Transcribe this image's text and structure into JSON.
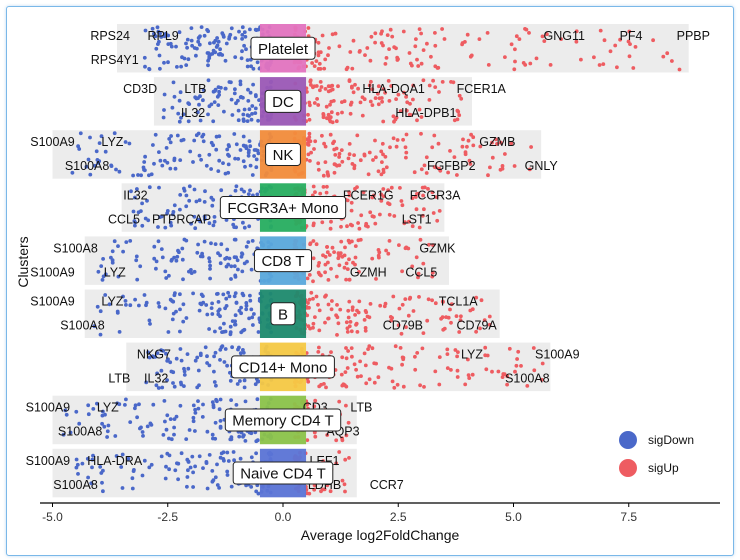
{
  "chart_data": {
    "type": "scatter",
    "subtype": "jitter-volcano-by-cluster",
    "xlabel": "Average log2FoldChange",
    "ylabel": "Clusters",
    "xlim": [
      -5.4,
      9.4
    ],
    "x_ticks": [
      "-5.0",
      "-2.5",
      "0.0",
      "2.5",
      "5.0",
      "7.5"
    ],
    "x_tick_values": [
      -5,
      -2.5,
      0,
      2.5,
      5,
      7.5
    ],
    "legend": {
      "placement": "bottom-right",
      "items": [
        {
          "label": "sigDown",
          "color": "#4a68c9"
        },
        {
          "label": "sigUp",
          "color": "#ee5c61"
        }
      ]
    },
    "clusters": [
      {
        "name": "Platelet",
        "color": "#e374c0",
        "bg_range": [
          -3.6,
          8.8
        ],
        "points_range": [
          -3.0,
          8.6
        ],
        "n_down": 150,
        "n_up": 160,
        "genes": [
          {
            "label": "RPS24",
            "x": -3.75,
            "row": "top",
            "dir": "down"
          },
          {
            "label": "RPL9",
            "x": -2.6,
            "row": "top",
            "dir": "down"
          },
          {
            "label": "RPS4Y1",
            "x": -3.65,
            "row": "bottom",
            "dir": "down"
          },
          {
            "label": "GNG11",
            "x": 6.1,
            "row": "top",
            "dir": "up"
          },
          {
            "label": "PF4",
            "x": 7.55,
            "row": "top",
            "dir": "up"
          },
          {
            "label": "PPBP",
            "x": 8.9,
            "row": "top",
            "dir": "up"
          }
        ]
      },
      {
        "name": "DC",
        "color": "#9b59b6",
        "bg_range": [
          -2.8,
          4.1
        ],
        "points_range": [
          -2.6,
          3.9
        ],
        "n_down": 110,
        "n_up": 130,
        "genes": [
          {
            "label": "CD3D",
            "x": -3.1,
            "row": "top",
            "dir": "down"
          },
          {
            "label": "LTB",
            "x": -1.9,
            "row": "top",
            "dir": "down"
          },
          {
            "label": "IL32",
            "x": -1.95,
            "row": "bottom",
            "dir": "down"
          },
          {
            "label": "HLA-DQA1",
            "x": 2.4,
            "row": "top",
            "dir": "up"
          },
          {
            "label": "FCER1A",
            "x": 4.3,
            "row": "top",
            "dir": "up"
          },
          {
            "label": "HLA-DPB1",
            "x": 3.1,
            "row": "bottom",
            "dir": "up"
          }
        ]
      },
      {
        "name": "NK",
        "color": "#f28c3b",
        "bg_range": [
          -5.0,
          5.6
        ],
        "points_range": [
          -4.6,
          5.5
        ],
        "n_down": 140,
        "n_up": 150,
        "genes": [
          {
            "label": "S100A9",
            "x": -5.0,
            "row": "top",
            "dir": "down"
          },
          {
            "label": "LYZ",
            "x": -3.7,
            "row": "top",
            "dir": "down"
          },
          {
            "label": "S100A8",
            "x": -4.25,
            "row": "bottom",
            "dir": "down"
          },
          {
            "label": "GZMB",
            "x": 4.65,
            "row": "top",
            "dir": "up"
          },
          {
            "label": "FGFBP2",
            "x": 3.65,
            "row": "bottom",
            "dir": "up"
          },
          {
            "label": "GNLY",
            "x": 5.6,
            "row": "bottom",
            "dir": "up"
          }
        ]
      },
      {
        "name": "FCGR3A+ Mono",
        "color": "#27ae60",
        "bg_range": [
          -3.5,
          3.5
        ],
        "points_range": [
          -3.3,
          3.4
        ],
        "n_down": 120,
        "n_up": 130,
        "genes": [
          {
            "label": "IL32",
            "x": -3.2,
            "row": "top",
            "dir": "down"
          },
          {
            "label": "CCL5",
            "x": -3.45,
            "row": "bottom",
            "dir": "down"
          },
          {
            "label": "PTPRCAP",
            "x": -2.2,
            "row": "bottom",
            "dir": "down"
          },
          {
            "label": "FCER1G",
            "x": 1.85,
            "row": "top",
            "dir": "up"
          },
          {
            "label": "FCGR3A",
            "x": 3.3,
            "row": "top",
            "dir": "up"
          },
          {
            "label": "LST1",
            "x": 2.9,
            "row": "bottom",
            "dir": "up"
          }
        ]
      },
      {
        "name": "CD8 T",
        "color": "#5aa9dc",
        "bg_range": [
          -4.3,
          3.6
        ],
        "points_range": [
          -4.1,
          3.3
        ],
        "n_down": 120,
        "n_up": 110,
        "genes": [
          {
            "label": "S100A8",
            "x": -4.5,
            "row": "top",
            "dir": "down"
          },
          {
            "label": "S100A9",
            "x": -5.0,
            "row": "bottom",
            "dir": "down"
          },
          {
            "label": "LYZ",
            "x": -3.65,
            "row": "bottom",
            "dir": "down"
          },
          {
            "label": "GZMK",
            "x": 3.35,
            "row": "top",
            "dir": "up"
          },
          {
            "label": "GZMH",
            "x": 1.85,
            "row": "bottom",
            "dir": "up"
          },
          {
            "label": "CCL5",
            "x": 3.0,
            "row": "bottom",
            "dir": "up"
          }
        ]
      },
      {
        "name": "B",
        "color": "#1e8a6e",
        "bg_range": [
          -4.3,
          4.7
        ],
        "points_range": [
          -4.1,
          4.5
        ],
        "n_down": 130,
        "n_up": 140,
        "genes": [
          {
            "label": "S100A9",
            "x": -5.0,
            "row": "top",
            "dir": "down"
          },
          {
            "label": "LYZ",
            "x": -3.7,
            "row": "top",
            "dir": "down"
          },
          {
            "label": "S100A8",
            "x": -4.35,
            "row": "bottom",
            "dir": "down"
          },
          {
            "label": "TCL1A",
            "x": 3.8,
            "row": "top",
            "dir": "up"
          },
          {
            "label": "CD79B",
            "x": 2.6,
            "row": "bottom",
            "dir": "up"
          },
          {
            "label": "CD79A",
            "x": 4.2,
            "row": "bottom",
            "dir": "up"
          }
        ]
      },
      {
        "name": "CD14+ Mono",
        "color": "#f6c945",
        "bg_range": [
          -3.4,
          5.8
        ],
        "points_range": [
          -3.0,
          5.7
        ],
        "n_down": 120,
        "n_up": 140,
        "genes": [
          {
            "label": "NKG7",
            "x": -2.8,
            "row": "top",
            "dir": "down"
          },
          {
            "label": "LTB",
            "x": -3.55,
            "row": "bottom",
            "dir": "down"
          },
          {
            "label": "IL32",
            "x": -2.75,
            "row": "bottom",
            "dir": "down"
          },
          {
            "label": "LYZ",
            "x": 4.1,
            "row": "top",
            "dir": "up"
          },
          {
            "label": "S100A9",
            "x": 5.95,
            "row": "top",
            "dir": "up"
          },
          {
            "label": "S100A8",
            "x": 5.3,
            "row": "bottom",
            "dir": "up"
          }
        ]
      },
      {
        "name": "Memory CD4 T",
        "color": "#8bc34a",
        "bg_range": [
          -5.0,
          1.6
        ],
        "points_range": [
          -4.8,
          1.5
        ],
        "n_down": 130,
        "n_up": 60,
        "genes": [
          {
            "label": "S100A9",
            "x": -5.1,
            "row": "top",
            "dir": "down"
          },
          {
            "label": "LYZ",
            "x": -3.8,
            "row": "top",
            "dir": "down"
          },
          {
            "label": "S100A8",
            "x": -4.4,
            "row": "bottom",
            "dir": "down"
          },
          {
            "label": "CD3",
            "x": 0.7,
            "row": "top",
            "dir": "up"
          },
          {
            "label": "LTB",
            "x": 1.7,
            "row": "top",
            "dir": "up"
          },
          {
            "label": "AQP3",
            "x": 1.3,
            "row": "bottom",
            "dir": "up"
          }
        ]
      },
      {
        "name": "Naive CD4 T",
        "color": "#5b74d6",
        "bg_range": [
          -5.0,
          1.6
        ],
        "points_range": [
          -4.6,
          1.5
        ],
        "n_down": 130,
        "n_up": 60,
        "genes": [
          {
            "label": "S100A9",
            "x": -5.1,
            "row": "top",
            "dir": "down"
          },
          {
            "label": "HLA-DRA",
            "x": -3.65,
            "row": "top",
            "dir": "down"
          },
          {
            "label": "S100A8",
            "x": -4.5,
            "row": "bottom",
            "dir": "down"
          },
          {
            "label": "LEF1",
            "x": 0.9,
            "row": "top",
            "dir": "up"
          },
          {
            "label": "LDHB",
            "x": 0.9,
            "row": "bottom",
            "dir": "up"
          },
          {
            "label": "CCR7",
            "x": 2.25,
            "row": "bottom",
            "dir": "up"
          }
        ]
      }
    ]
  }
}
